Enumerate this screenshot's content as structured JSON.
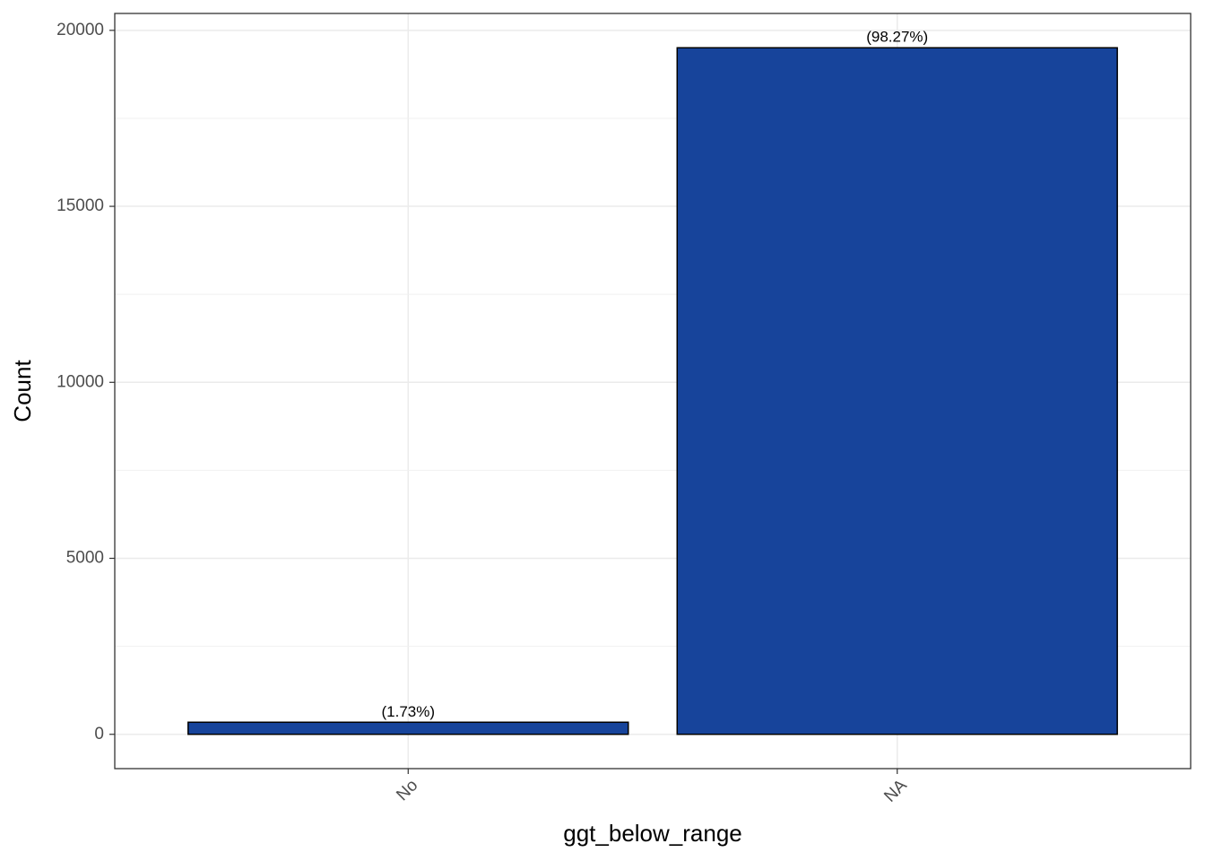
{
  "chart_data": {
    "type": "bar",
    "x_label": "ggt_below_range",
    "y_label": "Count",
    "categories": [
      "No",
      "NA"
    ],
    "values": [
      343,
      19505
    ],
    "labels": [
      "(1.73%)",
      "(98.27%)"
    ],
    "color": "#17449b",
    "ylim": [
      -975,
      20480
    ],
    "yticks": [
      0,
      5000,
      10000,
      15000,
      20000
    ],
    "y_minor_grid": [
      2500,
      7500,
      12500,
      17500
    ],
    "grid": true
  }
}
